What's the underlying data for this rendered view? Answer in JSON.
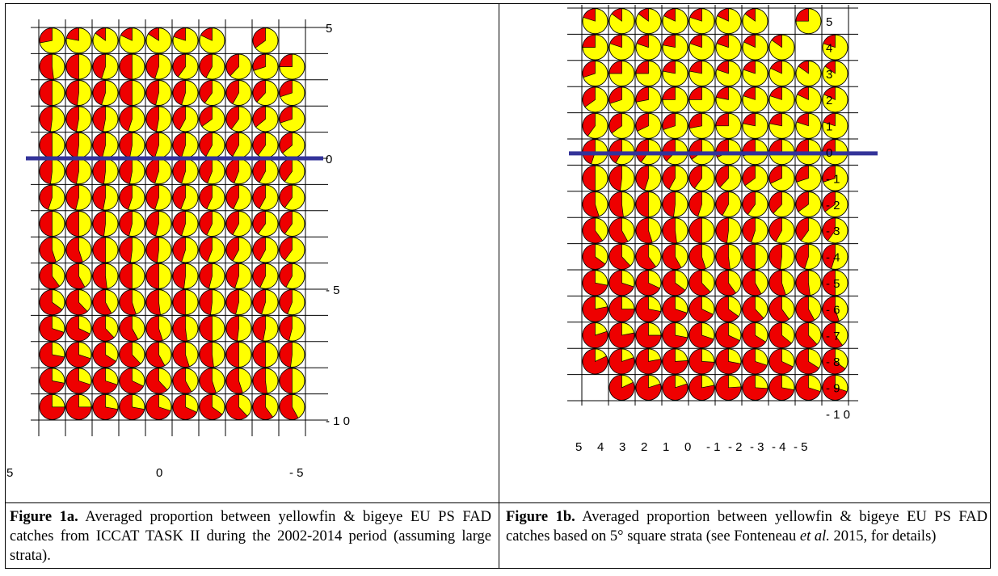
{
  "colors": {
    "yellowfin": "#ffff00",
    "bigeye": "#ee0000",
    "equator_line": "#333399",
    "grid": "#000000"
  },
  "chart_data": [
    {
      "type": "pie-grid map",
      "description_key": "Figure 1a",
      "categories": [
        "yellowfin",
        "bigeye"
      ],
      "lat_ticks": [
        "5",
        "0",
        "- 5",
        "- 1 0"
      ],
      "lon_ticks": [
        "5",
        "0",
        "- 5"
      ],
      "equator_lat": 0,
      "rows": [
        {
          "lat": 5,
          "bigeye_fraction": [
            0.28,
            0.22,
            0.15,
            0.18,
            0.16,
            0.2,
            0.18,
            null,
            0.35,
            null
          ]
        },
        {
          "lat": 4,
          "bigeye_fraction": [
            0.52,
            0.5,
            0.45,
            0.5,
            0.45,
            0.4,
            0.42,
            0.38,
            0.3,
            0.25
          ]
        },
        {
          "lat": 3,
          "bigeye_fraction": [
            0.5,
            0.48,
            0.45,
            0.5,
            0.46,
            0.45,
            0.4,
            0.42,
            0.38,
            0.3
          ]
        },
        {
          "lat": 2,
          "bigeye_fraction": [
            0.48,
            0.47,
            0.47,
            0.45,
            0.47,
            0.42,
            0.35,
            0.4,
            0.36,
            0.3
          ]
        },
        {
          "lat": 1,
          "bigeye_fraction": [
            0.5,
            0.48,
            0.46,
            0.47,
            0.45,
            0.45,
            0.42,
            0.42,
            0.4,
            0.36
          ]
        },
        {
          "lat": 0,
          "bigeye_fraction": [
            0.48,
            0.47,
            0.48,
            0.47,
            0.45,
            0.45,
            0.44,
            0.44,
            0.42,
            0.4
          ]
        },
        {
          "lat": -1,
          "bigeye_fraction": [
            0.45,
            0.46,
            0.47,
            0.45,
            0.45,
            0.44,
            0.43,
            0.43,
            0.42,
            0.4
          ]
        },
        {
          "lat": -2,
          "bigeye_fraction": [
            0.5,
            0.5,
            0.48,
            0.46,
            0.46,
            0.45,
            0.43,
            0.42,
            0.4,
            0.4
          ]
        },
        {
          "lat": -3,
          "bigeye_fraction": [
            0.55,
            0.55,
            0.5,
            0.48,
            0.48,
            0.45,
            0.44,
            0.42,
            0.42,
            0.4
          ]
        },
        {
          "lat": -4,
          "bigeye_fraction": [
            0.6,
            0.58,
            0.52,
            0.5,
            0.5,
            0.48,
            0.46,
            0.45,
            0.43,
            0.42
          ]
        },
        {
          "lat": -5,
          "bigeye_fraction": [
            0.65,
            0.62,
            0.58,
            0.55,
            0.52,
            0.5,
            0.48,
            0.46,
            0.45,
            0.44
          ]
        },
        {
          "lat": -6,
          "bigeye_fraction": [
            0.7,
            0.68,
            0.62,
            0.58,
            0.55,
            0.52,
            0.5,
            0.48,
            0.47,
            0.46
          ]
        },
        {
          "lat": -7,
          "bigeye_fraction": [
            0.72,
            0.7,
            0.66,
            0.62,
            0.58,
            0.55,
            0.52,
            0.5,
            0.5,
            0.48
          ]
        },
        {
          "lat": -8,
          "bigeye_fraction": [
            0.72,
            0.7,
            0.7,
            0.68,
            0.62,
            0.58,
            0.55,
            0.55,
            0.52,
            0.5
          ]
        },
        {
          "lat": -9,
          "bigeye_fraction": [
            0.75,
            0.75,
            0.72,
            0.72,
            0.7,
            0.68,
            0.65,
            0.62,
            0.6,
            0.58
          ]
        }
      ]
    },
    {
      "type": "pie-grid map",
      "description_key": "Figure 1b",
      "categories": [
        "yellowfin",
        "bigeye"
      ],
      "lat_ticks": [
        "5",
        "4",
        "3",
        "2",
        "1",
        "0",
        "- 1",
        "- 2",
        "- 3",
        "- 4",
        "- 5",
        "- 6",
        "- 7",
        "- 8",
        "- 9",
        "- 1 0"
      ],
      "lon_ticks": [
        "5",
        "4",
        "3",
        "2",
        "1",
        "0",
        "- 1",
        "- 2",
        "- 3",
        "- 4",
        "- 5"
      ],
      "equator_lat": 0,
      "rows": [
        {
          "lat": 5,
          "bigeye_fraction": [
            0.2,
            0.15,
            0.15,
            0.18,
            0.2,
            0.18,
            0.15,
            null,
            0.25,
            null
          ]
        },
        {
          "lat": 4,
          "bigeye_fraction": [
            0.25,
            0.2,
            0.2,
            0.22,
            0.2,
            0.2,
            0.18,
            0.15,
            null,
            0.2
          ]
        },
        {
          "lat": 3,
          "bigeye_fraction": [
            0.3,
            0.25,
            0.25,
            0.22,
            0.22,
            0.2,
            0.2,
            0.18,
            0.15,
            0.15
          ]
        },
        {
          "lat": 2,
          "bigeye_fraction": [
            0.35,
            0.3,
            0.28,
            0.25,
            0.25,
            0.22,
            0.2,
            0.2,
            0.18,
            0.18
          ]
        },
        {
          "lat": 1,
          "bigeye_fraction": [
            0.4,
            0.35,
            0.32,
            0.3,
            0.28,
            0.25,
            0.22,
            0.22,
            0.2,
            0.2
          ]
        },
        {
          "lat": 0,
          "bigeye_fraction": [
            0.45,
            0.42,
            0.4,
            0.38,
            0.35,
            0.32,
            0.3,
            0.28,
            0.25,
            0.25
          ]
        },
        {
          "lat": -1,
          "bigeye_fraction": [
            0.5,
            0.48,
            0.45,
            0.42,
            0.4,
            0.38,
            0.35,
            0.32,
            0.3,
            0.3
          ]
        },
        {
          "lat": -2,
          "bigeye_fraction": [
            0.55,
            0.52,
            0.5,
            0.48,
            0.45,
            0.42,
            0.4,
            0.38,
            0.35,
            0.35
          ]
        },
        {
          "lat": -3,
          "bigeye_fraction": [
            0.6,
            0.58,
            0.55,
            0.52,
            0.5,
            0.48,
            0.45,
            0.42,
            0.4,
            0.4
          ]
        },
        {
          "lat": -4,
          "bigeye_fraction": [
            0.65,
            0.62,
            0.6,
            0.58,
            0.55,
            0.52,
            0.5,
            0.48,
            0.45,
            0.45
          ]
        },
        {
          "lat": -5,
          "bigeye_fraction": [
            0.72,
            0.7,
            0.68,
            0.65,
            0.62,
            0.6,
            0.58,
            0.55,
            0.52,
            0.5
          ]
        },
        {
          "lat": -6,
          "bigeye_fraction": [
            0.78,
            0.75,
            0.72,
            0.7,
            0.68,
            0.65,
            0.62,
            0.6,
            0.58,
            0.55
          ]
        },
        {
          "lat": -7,
          "bigeye_fraction": [
            0.8,
            0.78,
            0.75,
            0.72,
            0.7,
            0.68,
            0.66,
            0.64,
            0.62,
            0.6
          ]
        },
        {
          "lat": -8,
          "bigeye_fraction": [
            0.82,
            0.8,
            0.78,
            0.76,
            0.74,
            0.72,
            0.7,
            0.68,
            0.66,
            0.65
          ]
        },
        {
          "lat": -9,
          "bigeye_fraction": [
            null,
            0.82,
            0.8,
            0.8,
            0.78,
            0.76,
            0.74,
            0.72,
            0.7,
            0.7
          ]
        }
      ]
    }
  ],
  "captions": {
    "a": {
      "label": "Figure 1a.",
      "text": " Averaged proportion between yellowfin & bigeye EU PS FAD catches from ICCAT TASK II during the 2002-2014 period (assuming large strata)."
    },
    "b": {
      "label": "Figure 1b.",
      "text_1": " Averaged proportion between yellowfin & bigeye EU PS FAD catches based on 5° square strata (see Fonteneau ",
      "text_italic": "et al.",
      "text_2": " 2015, for details)"
    }
  }
}
